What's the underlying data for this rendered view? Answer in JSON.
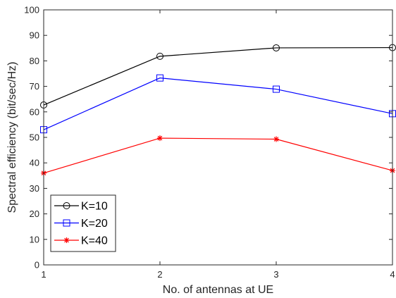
{
  "chart_data": {
    "type": "line",
    "xlabel": "No. of antennas at UE",
    "ylabel": "Spectral efficiency (bit/sec/Hz)",
    "x": [
      1,
      2,
      3,
      4
    ],
    "x_tick_labels": [
      "1",
      "2",
      "3",
      "4"
    ],
    "xlim": [
      1,
      4
    ],
    "ylim": [
      0,
      100
    ],
    "y_ticks": [
      0,
      10,
      20,
      30,
      40,
      50,
      60,
      70,
      80,
      90,
      100
    ],
    "y_tick_labels": [
      "0",
      "10",
      "20",
      "30",
      "40",
      "50",
      "60",
      "70",
      "80",
      "90",
      "100"
    ],
    "grid": false,
    "legend_position": "bottom-left",
    "series": [
      {
        "name": "K=10",
        "values": [
          62.7,
          81.8,
          85.1,
          85.2
        ],
        "color": "#000000",
        "marker": "circle"
      },
      {
        "name": "K=20",
        "values": [
          53.0,
          73.3,
          68.9,
          59.3
        ],
        "color": "#0000ff",
        "marker": "square"
      },
      {
        "name": "K=40",
        "values": [
          36.0,
          49.7,
          49.3,
          37.0
        ],
        "color": "#ff0000",
        "marker": "asterisk"
      }
    ]
  }
}
